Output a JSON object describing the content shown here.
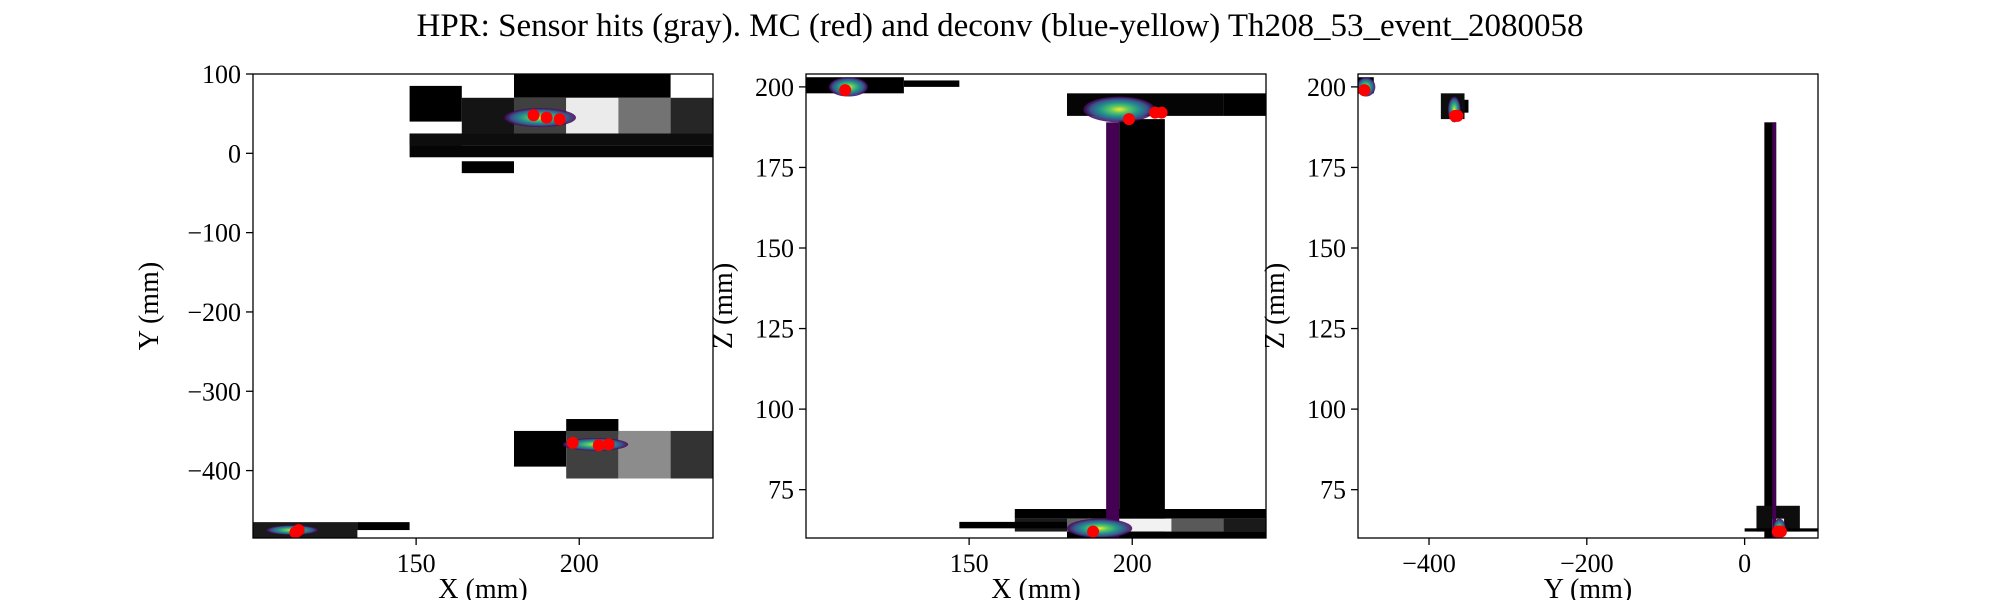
{
  "figure": {
    "title": "HPR: Sensor hits (gray). MC (red) and deconv (blue-yellow) Th208_53_event_2080058"
  },
  "colors": {
    "mc_points": "#ff0000",
    "frame": "#000000",
    "background": "#ffffff"
  },
  "chart_data": [
    {
      "type": "heatmap",
      "title": "",
      "xlabel": "X (mm)",
      "ylabel": "Y (mm)",
      "xlim": [
        100,
        241
      ],
      "ylim": [
        -485,
        100
      ],
      "xticks": [
        150,
        200
      ],
      "xtick_labels": [
        "150",
        "200"
      ],
      "yticks": [
        100,
        0,
        -100,
        -200,
        -300,
        -400
      ],
      "ytick_labels": [
        "100",
        "0",
        "−100",
        "−200",
        "−300",
        "−400"
      ],
      "sensor_hits": [
        {
          "x0": 148,
          "x1": 164,
          "y0": 40,
          "y1": 85,
          "level": 0.0
        },
        {
          "x0": 148,
          "x1": 164,
          "y0": 10,
          "y1": 25,
          "level": 0.0
        },
        {
          "x0": 164,
          "x1": 180,
          "y0": 25,
          "y1": 70,
          "level": 0.08
        },
        {
          "x0": 180,
          "x1": 228,
          "y0": 70,
          "y1": 100,
          "level": 0.0
        },
        {
          "x0": 180,
          "x1": 196,
          "y0": 25,
          "y1": 70,
          "level": 0.25
        },
        {
          "x0": 196,
          "x1": 212,
          "y0": 25,
          "y1": 70,
          "level": 0.92
        },
        {
          "x0": 212,
          "x1": 228,
          "y0": 25,
          "y1": 70,
          "level": 0.45
        },
        {
          "x0": 228,
          "x1": 241,
          "y0": 25,
          "y1": 70,
          "level": 0.15
        },
        {
          "x0": 148,
          "x1": 241,
          "y0": 10,
          "y1": 25,
          "level": 0.05
        },
        {
          "x0": 148,
          "x1": 241,
          "y0": -5,
          "y1": 10,
          "level": 0.02
        },
        {
          "x0": 164,
          "x1": 180,
          "y0": -25,
          "y1": -10,
          "level": 0.0
        },
        {
          "x0": 196,
          "x1": 212,
          "y0": -355,
          "y1": -335,
          "level": 0.0
        },
        {
          "x0": 180,
          "x1": 196,
          "y0": -395,
          "y1": -350,
          "level": 0.0
        },
        {
          "x0": 196,
          "x1": 212,
          "y0": -410,
          "y1": -350,
          "level": 0.25
        },
        {
          "x0": 212,
          "x1": 228,
          "y0": -410,
          "y1": -350,
          "level": 0.55
        },
        {
          "x0": 228,
          "x1": 241,
          "y0": -410,
          "y1": -350,
          "level": 0.2
        },
        {
          "x0": 100,
          "x1": 132,
          "y0": -485,
          "y1": -465,
          "level": 0.1
        },
        {
          "x0": 132,
          "x1": 148,
          "y0": -475,
          "y1": -465,
          "level": 0.0
        }
      ],
      "deconv_clusters": [
        {
          "x": 188,
          "y": 45,
          "rx": 11,
          "ry": 12
        },
        {
          "x": 205,
          "y": -367,
          "rx": 10,
          "ry": 8
        },
        {
          "x": 112,
          "y": -475,
          "rx": 8,
          "ry": 6
        }
      ],
      "mc_points": [
        {
          "x": 186,
          "y": 48
        },
        {
          "x": 190,
          "y": 45
        },
        {
          "x": 194,
          "y": 43
        },
        {
          "x": 198,
          "y": -365
        },
        {
          "x": 206,
          "y": -368
        },
        {
          "x": 209,
          "y": -367
        },
        {
          "x": 113,
          "y": -478
        },
        {
          "x": 114,
          "y": -475
        }
      ]
    },
    {
      "type": "heatmap",
      "title": "",
      "xlabel": "X (mm)",
      "ylabel": "Z (mm)",
      "xlim": [
        100,
        241
      ],
      "ylim": [
        60,
        204
      ],
      "xticks": [
        150,
        200
      ],
      "xtick_labels": [
        "150",
        "200"
      ],
      "yticks": [
        200,
        175,
        150,
        125,
        100,
        75
      ],
      "ytick_labels": [
        "200",
        "175",
        "150",
        "125",
        "100",
        "75"
      ],
      "sensor_hits": [
        {
          "x0": 100,
          "x1": 130,
          "y0": 198,
          "y1": 203,
          "level": 0.0
        },
        {
          "x0": 130,
          "x1": 147,
          "y0": 200,
          "y1": 202,
          "level": 0.0
        },
        {
          "x0": 180,
          "x1": 228,
          "y0": 191,
          "y1": 198,
          "level": 0.02
        },
        {
          "x0": 228,
          "x1": 241,
          "y0": 191,
          "y1": 198,
          "level": 0.0
        },
        {
          "x0": 196,
          "x1": 210,
          "y0": 60,
          "y1": 190,
          "level": 0.0
        },
        {
          "x0": 164,
          "x1": 241,
          "y0": 66,
          "y1": 69,
          "level": 0.0
        },
        {
          "x0": 164,
          "x1": 180,
          "y0": 62,
          "y1": 66,
          "level": 0.1
        },
        {
          "x0": 180,
          "x1": 196,
          "y0": 62,
          "y1": 66,
          "level": 0.4
        },
        {
          "x0": 196,
          "x1": 212,
          "y0": 62,
          "y1": 66,
          "level": 0.95
        },
        {
          "x0": 212,
          "x1": 228,
          "y0": 62,
          "y1": 66,
          "level": 0.35
        },
        {
          "x0": 228,
          "x1": 241,
          "y0": 62,
          "y1": 66,
          "level": 0.1
        },
        {
          "x0": 147,
          "x1": 180,
          "y0": 63,
          "y1": 65,
          "level": 0.0
        },
        {
          "x0": 180,
          "x1": 241,
          "y0": 60,
          "y1": 62,
          "level": 0.0
        }
      ],
      "deconv_clusters": [
        {
          "x": 113,
          "y": 200,
          "rx": 6,
          "ry": 3
        },
        {
          "x": 196,
          "y": 193,
          "rx": 11,
          "ry": 4
        },
        {
          "x": 190,
          "y": 63,
          "rx": 10,
          "ry": 3
        }
      ],
      "deconv_bars": [
        {
          "x0": 192,
          "x1": 196,
          "y0": 60,
          "y1": 189
        }
      ],
      "mc_points": [
        {
          "x": 112,
          "y": 199
        },
        {
          "x": 199,
          "y": 190
        },
        {
          "x": 207,
          "y": 192
        },
        {
          "x": 209,
          "y": 192
        },
        {
          "x": 188,
          "y": 62
        }
      ]
    },
    {
      "type": "heatmap",
      "title": "",
      "xlabel": "Y (mm)",
      "ylabel": "Z (mm)",
      "xlim": [
        -490,
        93
      ],
      "ylim": [
        60,
        204
      ],
      "xticks": [
        -400,
        -200,
        0
      ],
      "xtick_labels": [
        "−400",
        "−200",
        "0"
      ],
      "yticks": [
        200,
        175,
        150,
        125,
        100,
        75
      ],
      "ytick_labels": [
        "200",
        "175",
        "150",
        "125",
        "100",
        "75"
      ],
      "sensor_hits": [
        {
          "x0": -490,
          "x1": -470,
          "y0": 198,
          "y1": 203,
          "level": 0.0
        },
        {
          "x0": -385,
          "x1": -355,
          "y0": 190,
          "y1": 198,
          "level": 0.05
        },
        {
          "x0": -355,
          "x1": -350,
          "y0": 192,
          "y1": 196,
          "level": 0.0
        },
        {
          "x0": 25,
          "x1": 40,
          "y0": 60,
          "y1": 189,
          "level": 0.0
        },
        {
          "x0": 15,
          "x1": 70,
          "y0": 62,
          "y1": 70,
          "level": 0.05
        },
        {
          "x0": 35,
          "x1": 50,
          "y0": 62,
          "y1": 66,
          "level": 0.95
        },
        {
          "x0": 0,
          "x1": 93,
          "y0": 62,
          "y1": 63,
          "level": 0.0
        }
      ],
      "deconv_clusters": [
        {
          "x": -480,
          "y": 200,
          "rx": 12,
          "ry": 3
        },
        {
          "x": -368,
          "y": 193,
          "rx": 8,
          "ry": 4
        },
        {
          "x": 44,
          "y": 63,
          "rx": 8,
          "ry": 3
        }
      ],
      "deconv_bars": [
        {
          "x0": 35,
          "x1": 40,
          "y0": 60,
          "y1": 189
        }
      ],
      "mc_points": [
        {
          "x": -482,
          "y": 199
        },
        {
          "x": -367,
          "y": 191
        },
        {
          "x": -364,
          "y": 191
        },
        {
          "x": 42,
          "y": 62
        },
        {
          "x": 46,
          "y": 62
        }
      ]
    }
  ]
}
